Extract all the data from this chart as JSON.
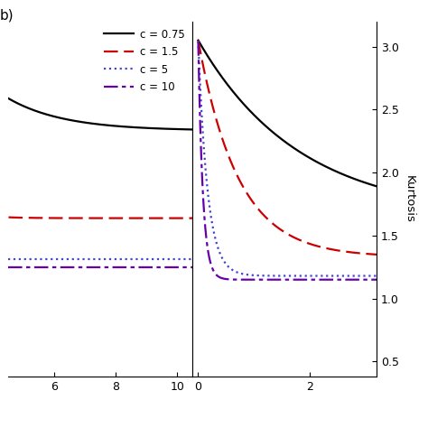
{
  "c_values": [
    0.75,
    1.5,
    5.0,
    10.0
  ],
  "line_colors": [
    "black",
    "#cc0000",
    "#4444cc",
    "#6600aa"
  ],
  "line_styles": [
    "-",
    "--",
    ":",
    "-."
  ],
  "legend_labels": [
    "c = 0.75",
    "c = 1.5",
    "c = 5",
    "c = 10"
  ],
  "left_xlim": [
    4.5,
    10.5
  ],
  "left_ylim": [
    0.75,
    2.05
  ],
  "right_xlim": [
    -0.1,
    3.2
  ],
  "right_ylim": [
    0.38,
    3.2
  ],
  "right_ylabel": "Kurtosis",
  "left_xticks": [
    6,
    8,
    10
  ],
  "right_xticks": [
    0,
    2
  ],
  "right_yticks": [
    0.5,
    1.0,
    1.5,
    2.0,
    2.5,
    3.0
  ],
  "background_color": "#ffffff",
  "panel_label": "b)",
  "asymptotes": [
    1.65,
    1.33,
    1.18,
    1.15
  ],
  "k0": 3.05,
  "decay_rates": [
    0.55,
    1.4,
    6.0,
    12.0
  ]
}
